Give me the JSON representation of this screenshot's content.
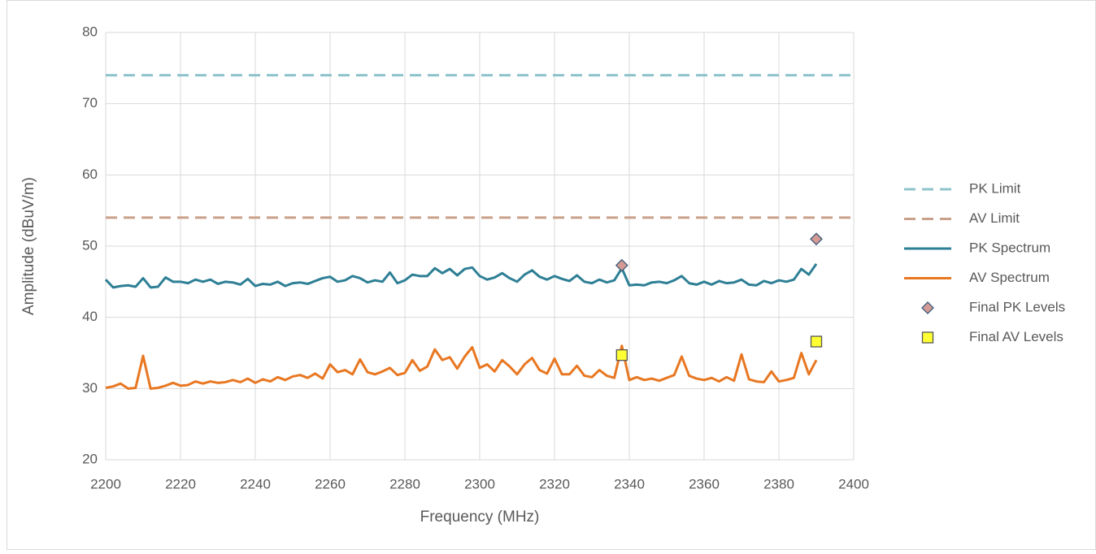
{
  "chart_data": {
    "type": "line",
    "x_label": "Frequency (MHz)",
    "y_label": "Amplitude (dBuV/m)",
    "xlim": [
      2200,
      2400
    ],
    "xticks": [
      2200,
      2220,
      2240,
      2260,
      2280,
      2300,
      2320,
      2340,
      2360,
      2380,
      2400
    ],
    "ylim": [
      20,
      80
    ],
    "yticks": [
      20,
      30,
      40,
      50,
      60,
      70,
      80
    ],
    "grid": true,
    "legend": "right",
    "series": [
      {
        "name": "PK Limit",
        "color": "#8fc3cc",
        "style": "dashed",
        "x": [
          2200,
          2400
        ],
        "values": [
          74,
          74
        ]
      },
      {
        "name": "AV Limit",
        "color": "#c9a08a",
        "style": "dashed",
        "x": [
          2200,
          2400
        ],
        "values": [
          54,
          54
        ]
      },
      {
        "name": "PK Spectrum",
        "color": "#2e7f95",
        "style": "solid",
        "x": [
          2200,
          2202,
          2204,
          2206,
          2208,
          2210,
          2212,
          2214,
          2216,
          2218,
          2220,
          2222,
          2224,
          2226,
          2228,
          2230,
          2232,
          2234,
          2236,
          2238,
          2240,
          2242,
          2244,
          2246,
          2248,
          2250,
          2252,
          2254,
          2256,
          2258,
          2260,
          2262,
          2264,
          2266,
          2268,
          2270,
          2272,
          2274,
          2276,
          2278,
          2280,
          2282,
          2284,
          2286,
          2288,
          2290,
          2292,
          2294,
          2296,
          2298,
          2300,
          2302,
          2304,
          2306,
          2308,
          2310,
          2312,
          2314,
          2316,
          2318,
          2320,
          2322,
          2324,
          2326,
          2328,
          2330,
          2332,
          2334,
          2336,
          2338,
          2340,
          2342,
          2344,
          2346,
          2348,
          2350,
          2352,
          2354,
          2356,
          2358,
          2360,
          2362,
          2364,
          2366,
          2368,
          2370,
          2372,
          2374,
          2376,
          2378,
          2380,
          2382,
          2384,
          2386,
          2388,
          2390
        ],
        "values": [
          45.3,
          44.2,
          44.4,
          44.5,
          44.3,
          45.5,
          44.2,
          44.3,
          45.6,
          45.0,
          45.0,
          44.8,
          45.3,
          45.0,
          45.3,
          44.7,
          45.0,
          44.9,
          44.6,
          45.4,
          44.4,
          44.7,
          44.6,
          45.0,
          44.4,
          44.8,
          44.9,
          44.7,
          45.1,
          45.5,
          45.7,
          45.0,
          45.2,
          45.8,
          45.5,
          44.9,
          45.2,
          45.0,
          46.3,
          44.8,
          45.2,
          46.0,
          45.8,
          45.8,
          46.9,
          46.2,
          46.8,
          45.9,
          46.8,
          47.0,
          45.8,
          45.3,
          45.6,
          46.2,
          45.5,
          45.0,
          46.0,
          46.6,
          45.7,
          45.3,
          45.8,
          45.4,
          45.1,
          45.9,
          45.0,
          44.8,
          45.3,
          44.9,
          45.2,
          46.9,
          44.5,
          44.6,
          44.5,
          44.9,
          45.0,
          44.8,
          45.2,
          45.8,
          44.8,
          44.6,
          45.0,
          44.6,
          45.1,
          44.8,
          44.9,
          45.3,
          44.6,
          44.5,
          45.1,
          44.8,
          45.2,
          45.0,
          45.3,
          46.8,
          46.0,
          47.5
        ]
      },
      {
        "name": "AV Spectrum",
        "color": "#e87722",
        "style": "solid",
        "x": [
          2200,
          2202,
          2204,
          2206,
          2208,
          2210,
          2212,
          2214,
          2216,
          2218,
          2220,
          2222,
          2224,
          2226,
          2228,
          2230,
          2232,
          2234,
          2236,
          2238,
          2240,
          2242,
          2244,
          2246,
          2248,
          2250,
          2252,
          2254,
          2256,
          2258,
          2260,
          2262,
          2264,
          2266,
          2268,
          2270,
          2272,
          2274,
          2276,
          2278,
          2280,
          2282,
          2284,
          2286,
          2288,
          2290,
          2292,
          2294,
          2296,
          2298,
          2300,
          2302,
          2304,
          2306,
          2308,
          2310,
          2312,
          2314,
          2316,
          2318,
          2320,
          2322,
          2324,
          2326,
          2328,
          2330,
          2332,
          2334,
          2336,
          2338,
          2340,
          2342,
          2344,
          2346,
          2348,
          2350,
          2352,
          2354,
          2356,
          2358,
          2360,
          2362,
          2364,
          2366,
          2368,
          2370,
          2372,
          2374,
          2376,
          2378,
          2380,
          2382,
          2384,
          2386,
          2388,
          2390
        ],
        "values": [
          30.1,
          30.3,
          30.7,
          30.0,
          30.1,
          34.6,
          30.0,
          30.1,
          30.4,
          30.8,
          30.4,
          30.5,
          31.0,
          30.7,
          31.0,
          30.8,
          30.9,
          31.2,
          30.9,
          31.4,
          30.8,
          31.3,
          31.0,
          31.6,
          31.2,
          31.7,
          31.9,
          31.5,
          32.1,
          31.4,
          33.4,
          32.3,
          32.6,
          32.0,
          34.1,
          32.3,
          32.0,
          32.4,
          32.9,
          31.9,
          32.2,
          34.0,
          32.5,
          33.1,
          35.5,
          34.0,
          34.4,
          32.8,
          34.5,
          35.8,
          32.9,
          33.4,
          32.4,
          34.0,
          33.1,
          32.0,
          33.4,
          34.3,
          32.6,
          32.1,
          34.2,
          32.0,
          32.0,
          33.2,
          31.8,
          31.6,
          32.6,
          31.8,
          31.5,
          36.0,
          31.2,
          31.6,
          31.2,
          31.4,
          31.1,
          31.5,
          31.9,
          34.5,
          31.8,
          31.4,
          31.2,
          31.5,
          31.0,
          31.6,
          31.1,
          34.8,
          31.3,
          31.0,
          30.9,
          32.4,
          31.0,
          31.2,
          31.5,
          35.0,
          32.0,
          34.0
        ]
      },
      {
        "name": "Final PK Levels",
        "color": "#d49a94",
        "style": "diamond",
        "x": [
          2338,
          2390
        ],
        "values": [
          47.3,
          51.0
        ]
      },
      {
        "name": "Final AV Levels",
        "color": "#ffff33",
        "style": "square",
        "x": [
          2338,
          2390
        ],
        "values": [
          34.7,
          36.6
        ]
      }
    ]
  }
}
